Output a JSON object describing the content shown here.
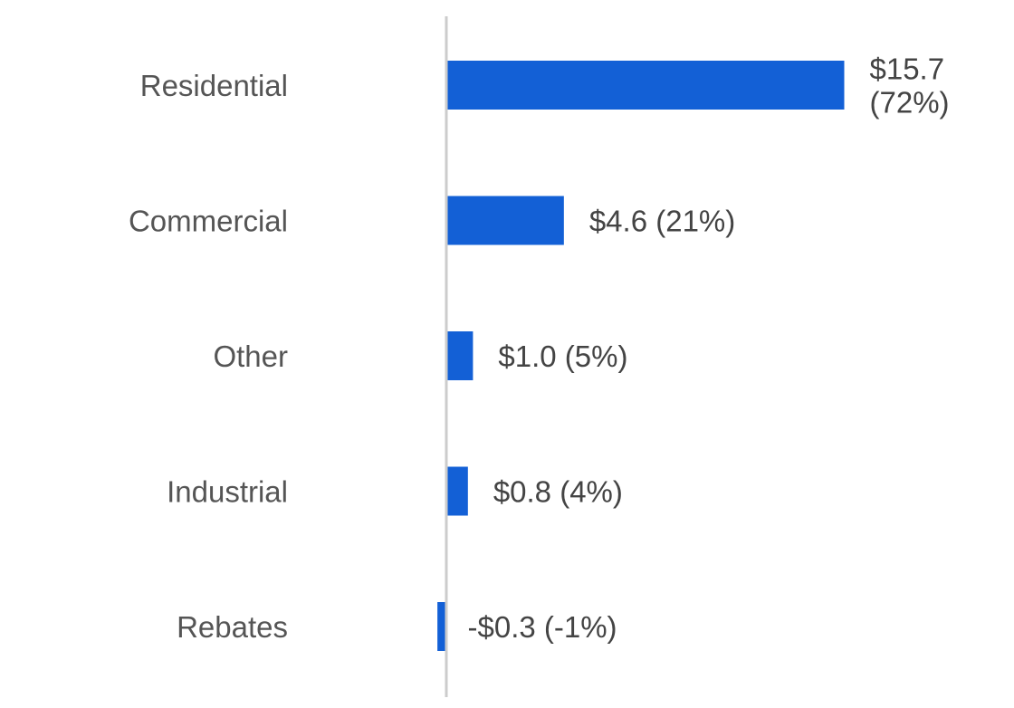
{
  "chart_data": {
    "type": "bar",
    "orientation": "horizontal",
    "categories": [
      "Residential",
      "Commercial",
      "Other",
      "Industrial",
      "Rebates"
    ],
    "series": [
      {
        "values": [
          15.7,
          4.6,
          1.0,
          0.8,
          -0.3
        ]
      }
    ],
    "data_labels": [
      [
        "$15.7",
        "(72%)"
      ],
      [
        "$4.6 (21%)"
      ],
      [
        "$1.0 (5%)"
      ],
      [
        "$0.8 (4%)"
      ],
      [
        "-$0.3 (-1%)"
      ]
    ],
    "percentages": [
      72,
      21,
      5,
      4,
      -1
    ],
    "xlim": [
      -0.3,
      15.7
    ],
    "grid": false,
    "legend": "none",
    "colors": {
      "bar": "#1360d6",
      "axis": "#cccccc",
      "category_text": "#555555",
      "value_text": "#444444"
    }
  }
}
